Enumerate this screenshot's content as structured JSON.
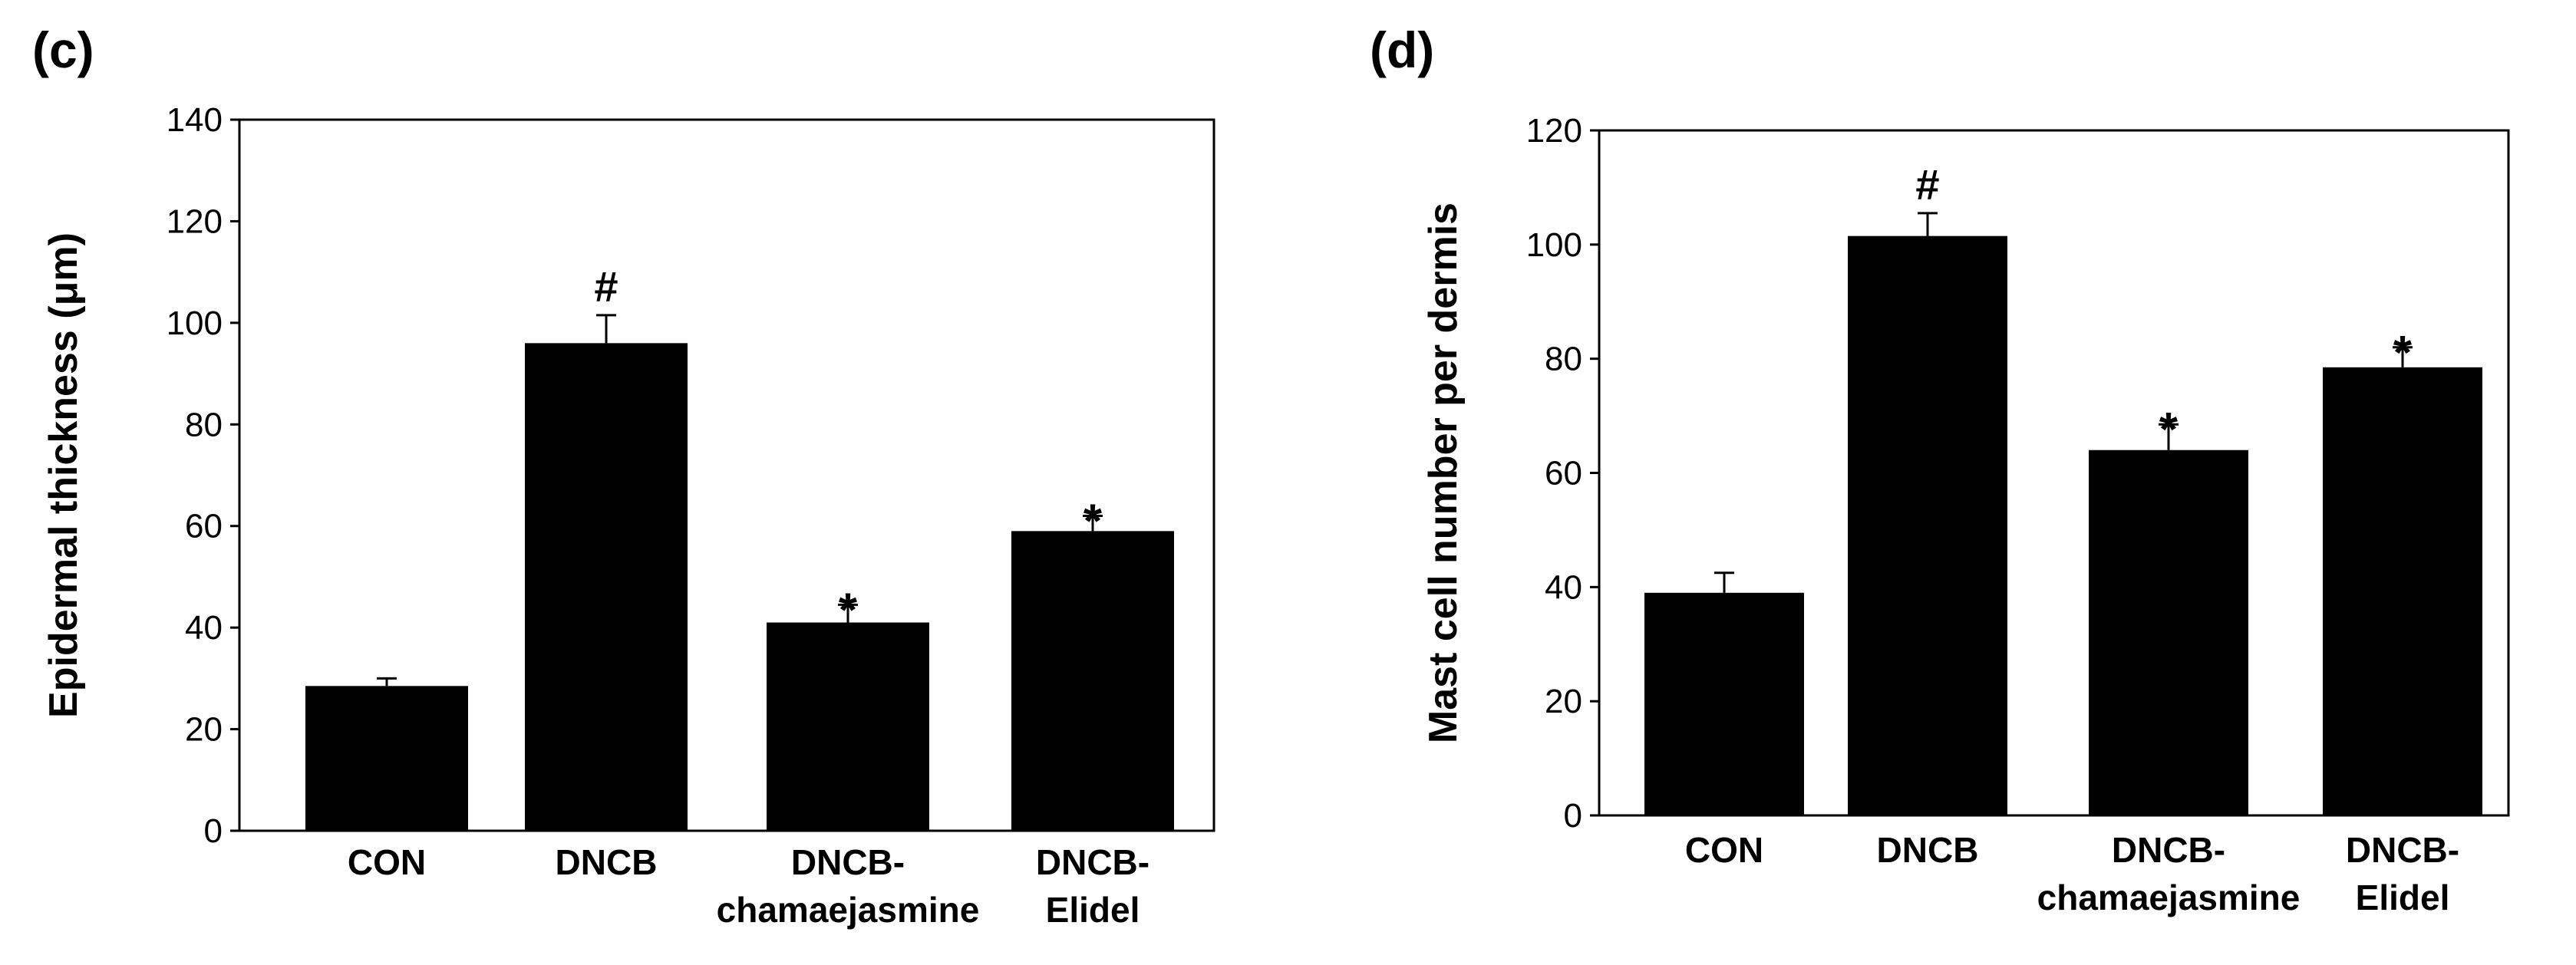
{
  "chart_data": [
    {
      "type": "bar",
      "panel_label": "(c)",
      "title": "",
      "xlabel": "",
      "ylabel": "Epidermal thickness (μm)",
      "ylim": [
        0,
        140
      ],
      "yticks": [
        0,
        20,
        40,
        60,
        80,
        100,
        120,
        140
      ],
      "categories": [
        [
          "CON"
        ],
        [
          "DNCB"
        ],
        [
          "DNCB-",
          "chamaejasmine"
        ],
        [
          "DNCB-",
          "Elidel"
        ]
      ],
      "values": [
        28.5,
        96,
        41,
        59
      ],
      "errors": [
        1.5,
        5.5,
        3.5,
        3
      ],
      "significance": [
        "",
        "#",
        "*",
        "*"
      ],
      "bar_color": "#000000",
      "grid": false,
      "legend": "none"
    },
    {
      "type": "bar",
      "panel_label": "(d)",
      "title": "",
      "xlabel": "",
      "ylabel": "Mast cell number per dermis",
      "ylim": [
        0,
        120
      ],
      "yticks": [
        0,
        20,
        40,
        60,
        80,
        100,
        120
      ],
      "categories": [
        [
          "CON"
        ],
        [
          "DNCB"
        ],
        [
          "DNCB-",
          "chamaejasmine"
        ],
        [
          "DNCB-",
          "Elidel"
        ]
      ],
      "values": [
        39,
        101.5,
        64,
        78.5
      ],
      "errors": [
        3.5,
        4,
        4.5,
        3.5
      ],
      "significance": [
        "",
        "#",
        "*",
        "*"
      ],
      "bar_color": "#000000",
      "grid": false,
      "legend": "none"
    }
  ]
}
